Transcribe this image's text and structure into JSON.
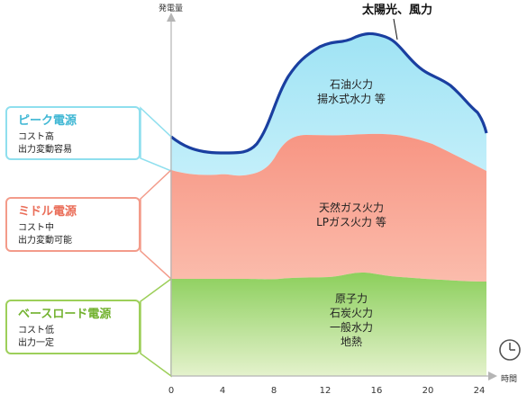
{
  "axes": {
    "y_label": "発電量",
    "x_label": "時間",
    "x_ticks": [
      "0",
      "4",
      "8",
      "12",
      "16",
      "20",
      "24"
    ]
  },
  "categories": {
    "peak": {
      "title": "ピーク電源",
      "lines": [
        "コスト高",
        "出力変動容易"
      ],
      "sources": [
        "石油火力",
        "揚水式水力 等"
      ],
      "color": "#a6e6f5"
    },
    "middle": {
      "title": "ミドル電源",
      "lines": [
        "コスト中",
        "出力変動可能"
      ],
      "sources": [
        "天然ガス火力",
        "LPガス火力 等"
      ],
      "color": "#f79a86"
    },
    "base": {
      "title": "ベースロード電源",
      "lines": [
        "コスト低",
        "出力一定"
      ],
      "sources": [
        "原子力",
        "石炭火力",
        "一般水力",
        "地熱"
      ],
      "color": "#8ed05e"
    }
  },
  "solar_label": "太陽光、風力",
  "icons": {
    "clock": "clock-icon"
  }
}
